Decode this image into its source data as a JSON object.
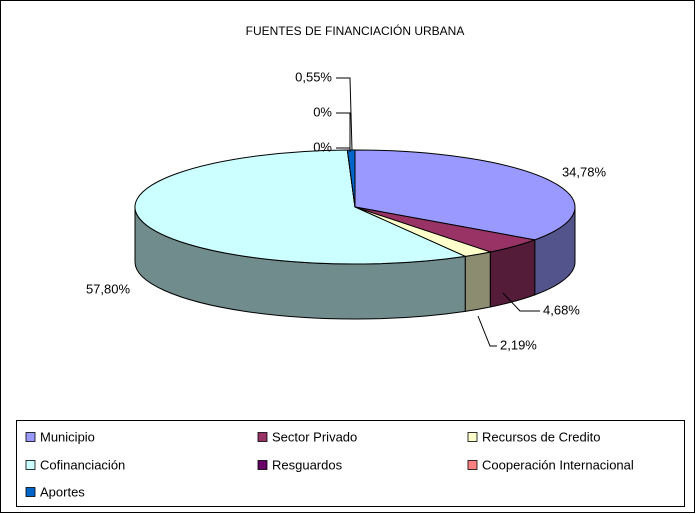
{
  "chart_data": {
    "type": "pie3d",
    "title": "FUENTES DE FINANCIACIÓN URBANA",
    "categories": [
      "Municipio",
      "Sector Privado",
      "Recursos de Credito",
      "Cofinanciación",
      "Resguardos",
      "Cooperación Internacional",
      "Aportes"
    ],
    "values": [
      34.78,
      4.68,
      2.19,
      57.8,
      0,
      0,
      0.55
    ],
    "value_labels": [
      "34,78%",
      "4,68%",
      "2,19%",
      "57,80%",
      "0%",
      "0%",
      "0,55%"
    ],
    "colors": [
      "#9999ff",
      "#993366",
      "#ffffcc",
      "#ccffff",
      "#660066",
      "#ff8080",
      "#0066cc"
    ],
    "legend": "bottom"
  }
}
